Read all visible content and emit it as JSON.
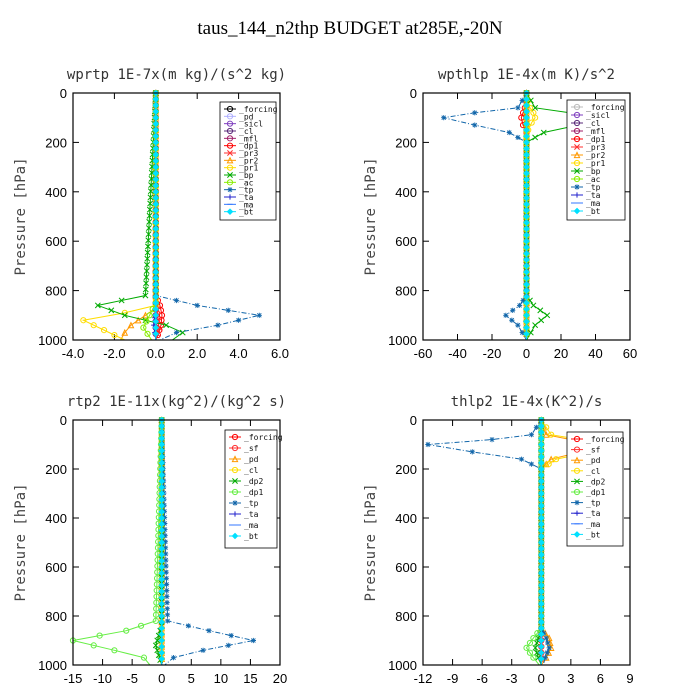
{
  "title": "taus_144_n2thp  BUDGET at285E,-20N",
  "chart_data": [
    {
      "type": "line",
      "title": "wprtp  1E-7x(m kg)/(s^2 kg)",
      "ylabel": "Pressure [hPa]",
      "xlim": [
        -4,
        6
      ],
      "ylim": [
        1000,
        0
      ],
      "xticks": [
        "-4.0",
        "-2.0",
        "0.0",
        "2.0",
        "4.0",
        "6.0"
      ],
      "xtick_values": [
        -4,
        -2,
        0,
        2,
        4,
        6
      ],
      "yticks": [
        "0",
        "200",
        "400",
        "600",
        "800",
        "1000"
      ],
      "ytick_values": [
        0,
        200,
        400,
        600,
        800,
        1000
      ],
      "legend_position": "top-right",
      "series": [
        {
          "name": "_forcing",
          "color": "#000000",
          "marker": "o",
          "x": [
            0,
            0,
            0,
            0,
            0,
            0,
            0
          ],
          "y": [
            0,
            200,
            400,
            600,
            800,
            900,
            1000
          ]
        },
        {
          "name": "_pd",
          "color": "#b0b0ff",
          "marker": "o",
          "x": [
            0,
            0,
            0
          ],
          "y": [
            0,
            500,
            1000
          ]
        },
        {
          "name": "_sicl",
          "color": "#7f3fbf",
          "marker": "o",
          "x": [
            0,
            0,
            0
          ],
          "y": [
            0,
            500,
            1000
          ]
        },
        {
          "name": "_cl",
          "color": "#5a2a7a",
          "marker": "o",
          "x": [
            0,
            0,
            0
          ],
          "y": [
            0,
            500,
            1000
          ]
        },
        {
          "name": "_mfl",
          "color": "#a0206a",
          "marker": "o",
          "x": [
            0,
            0,
            0
          ],
          "y": [
            0,
            500,
            1000
          ]
        },
        {
          "name": "_dp1",
          "color": "#ff0000",
          "marker": "o",
          "x": [
            0,
            0,
            0.2,
            0.3,
            0.25,
            0.1,
            0
          ],
          "y": [
            0,
            820,
            860,
            900,
            940,
            980,
            1000
          ]
        },
        {
          "name": "_pr3",
          "color": "#ff3030",
          "marker": "x",
          "x": [
            0,
            0,
            0.1,
            0.15,
            0
          ],
          "y": [
            0,
            850,
            900,
            950,
            1000
          ]
        },
        {
          "name": "_pr2",
          "color": "#ff9900",
          "marker": "^",
          "x": [
            0,
            0,
            -0.5,
            -1.2,
            -1.5,
            -1.7
          ],
          "y": [
            0,
            870,
            900,
            940,
            970,
            1000
          ]
        },
        {
          "name": "_pr1",
          "color": "#ffdd00",
          "marker": "o",
          "x": [
            0,
            0,
            -1.5,
            -3.5,
            -2.5,
            -1.5
          ],
          "y": [
            0,
            860,
            890,
            920,
            960,
            1000
          ]
        },
        {
          "name": "_bp",
          "color": "#00aa00",
          "marker": "x",
          "x": [
            0,
            -0.5,
            -2.8,
            -1.5,
            0.5,
            1.3,
            0.8
          ],
          "y": [
            0,
            820,
            860,
            900,
            940,
            970,
            1000
          ]
        },
        {
          "name": "_ac",
          "color": "#88ee00",
          "marker": "o",
          "x": [
            0,
            0,
            -0.3,
            -0.6,
            -0.2
          ],
          "y": [
            0,
            850,
            900,
            950,
            1000
          ]
        },
        {
          "name": "_tp",
          "color": "#1166aa",
          "marker": "*",
          "x": [
            0,
            0,
            2.0,
            5.0,
            3.0,
            1.0,
            0.2
          ],
          "y": [
            0,
            820,
            860,
            900,
            940,
            970,
            1000
          ]
        },
        {
          "name": "_ta",
          "color": "#2222cc",
          "marker": "+",
          "x": [
            0,
            0,
            -0.1,
            0
          ],
          "y": [
            0,
            880,
            940,
            1000
          ]
        },
        {
          "name": "_ma",
          "color": "#3377ff",
          "marker": "-",
          "x": [
            0,
            0,
            0
          ],
          "y": [
            0,
            500,
            1000
          ]
        },
        {
          "name": "_bt",
          "color": "#00e0ff",
          "marker": "D",
          "x": [
            0,
            0,
            0
          ],
          "y": [
            0,
            500,
            1000
          ]
        }
      ]
    },
    {
      "type": "line",
      "title": "wpthlp  1E-4x(m K)/s^2",
      "ylabel": "Pressure [hPa]",
      "xlim": [
        -60,
        60
      ],
      "ylim": [
        1000,
        0
      ],
      "xticks": [
        "-60",
        "-40",
        "-20",
        "0",
        "20",
        "40",
        "60"
      ],
      "xtick_values": [
        -60,
        -40,
        -20,
        0,
        20,
        40,
        60
      ],
      "yticks": [
        "0",
        "200",
        "400",
        "600",
        "800",
        "1000"
      ],
      "ytick_values": [
        0,
        200,
        400,
        600,
        800,
        1000
      ],
      "legend_position": "top-right",
      "series": [
        {
          "name": "_forcing",
          "color": "#bbbbbb",
          "marker": "o",
          "x": [
            0,
            0,
            0
          ],
          "y": [
            0,
            500,
            1000
          ]
        },
        {
          "name": "_sicl",
          "color": "#7f3fbf",
          "marker": "o",
          "x": [
            0,
            0,
            0
          ],
          "y": [
            0,
            500,
            1000
          ]
        },
        {
          "name": "_cl",
          "color": "#5a2a7a",
          "marker": "o",
          "x": [
            0,
            0,
            0
          ],
          "y": [
            0,
            500,
            1000
          ]
        },
        {
          "name": "_mfl",
          "color": "#a0206a",
          "marker": "o",
          "x": [
            0,
            0,
            0
          ],
          "y": [
            0,
            500,
            1000
          ]
        },
        {
          "name": "_dp1",
          "color": "#ff0000",
          "marker": "o",
          "x": [
            0,
            -1,
            -2,
            -3,
            -2,
            0,
            0
          ],
          "y": [
            0,
            60,
            80,
            100,
            130,
            160,
            1000
          ]
        },
        {
          "name": "_pr3",
          "color": "#ff3030",
          "marker": "x",
          "x": [
            0,
            0,
            0
          ],
          "y": [
            0,
            500,
            1000
          ]
        },
        {
          "name": "_pr2",
          "color": "#ff9900",
          "marker": "^",
          "x": [
            0,
            0,
            0
          ],
          "y": [
            0,
            500,
            1000
          ]
        },
        {
          "name": "_pr1",
          "color": "#ffdd00",
          "marker": "o",
          "x": [
            0,
            2,
            4,
            5,
            3,
            1,
            0,
            0
          ],
          "y": [
            0,
            60,
            80,
            100,
            120,
            150,
            180,
            1000
          ]
        },
        {
          "name": "_bp",
          "color": "#00aa00",
          "marker": "x",
          "x": [
            0,
            5,
            25,
            50,
            30,
            10,
            0,
            0,
            4,
            12,
            5,
            0
          ],
          "y": [
            0,
            60,
            80,
            100,
            130,
            160,
            200,
            820,
            860,
            900,
            940,
            1000
          ]
        },
        {
          "name": "_ac",
          "color": "#88ee00",
          "marker": "o",
          "x": [
            0,
            0,
            0
          ],
          "y": [
            0,
            500,
            1000
          ]
        },
        {
          "name": "_tp",
          "color": "#1166aa",
          "marker": "*",
          "x": [
            0,
            -5,
            -30,
            -48,
            -30,
            -10,
            0,
            0,
            -4,
            -12,
            -5,
            0
          ],
          "y": [
            0,
            60,
            80,
            100,
            130,
            160,
            200,
            820,
            860,
            900,
            940,
            1000
          ]
        },
        {
          "name": "_ta",
          "color": "#2222cc",
          "marker": "+",
          "x": [
            0,
            0,
            0
          ],
          "y": [
            0,
            500,
            1000
          ]
        },
        {
          "name": "_ma",
          "color": "#3377ff",
          "marker": "-",
          "x": [
            0,
            0,
            0
          ],
          "y": [
            0,
            500,
            1000
          ]
        },
        {
          "name": "_bt",
          "color": "#00e0ff",
          "marker": "D",
          "x": [
            0,
            0,
            0
          ],
          "y": [
            0,
            500,
            1000
          ]
        }
      ]
    },
    {
      "type": "line",
      "title": "rtp2  1E-11x(kg^2)/(kg^2 s)",
      "ylabel": "Pressure [hPa]",
      "xlim": [
        -15,
        20
      ],
      "ylim": [
        1000,
        0
      ],
      "xticks": [
        "-15",
        "-10",
        "-5",
        "0",
        "5",
        "10",
        "15",
        "20"
      ],
      "xtick_values": [
        -15,
        -10,
        -5,
        0,
        5,
        10,
        15,
        20
      ],
      "yticks": [
        "0",
        "200",
        "400",
        "600",
        "800",
        "1000"
      ],
      "ytick_values": [
        0,
        200,
        400,
        600,
        800,
        1000
      ],
      "legend_position": "top-right",
      "series": [
        {
          "name": "_forcing",
          "color": "#ff0000",
          "marker": "o",
          "x": [
            0,
            0,
            0,
            0,
            0,
            0,
            0
          ],
          "y": [
            0,
            200,
            400,
            600,
            800,
            900,
            1000
          ]
        },
        {
          "name": "_sf",
          "color": "#ff3030",
          "marker": "o",
          "x": [
            0,
            0,
            0
          ],
          "y": [
            0,
            500,
            1000
          ]
        },
        {
          "name": "_pd",
          "color": "#ff9900",
          "marker": "^",
          "x": [
            0,
            0,
            0
          ],
          "y": [
            0,
            500,
            1000
          ]
        },
        {
          "name": "_cl",
          "color": "#ffdd00",
          "marker": "o",
          "x": [
            0,
            0,
            0
          ],
          "y": [
            0,
            500,
            1000
          ]
        },
        {
          "name": "_dp2",
          "color": "#00aa00",
          "marker": "x",
          "x": [
            0,
            0,
            -0.5,
            -1,
            -0.5,
            0
          ],
          "y": [
            0,
            840,
            880,
            920,
            960,
            1000
          ]
        },
        {
          "name": "_dp1",
          "color": "#66ee44",
          "marker": "o",
          "x": [
            0,
            -1,
            -6,
            -15,
            -8,
            -3,
            -2
          ],
          "y": [
            0,
            820,
            860,
            900,
            940,
            970,
            1000
          ]
        },
        {
          "name": "_tp",
          "color": "#1166aa",
          "marker": "*",
          "x": [
            0,
            1,
            8,
            15.5,
            7,
            2,
            0.5
          ],
          "y": [
            0,
            820,
            860,
            900,
            940,
            970,
            1000
          ]
        },
        {
          "name": "_ta",
          "color": "#2222cc",
          "marker": "+",
          "x": [
            0,
            0,
            0
          ],
          "y": [
            0,
            500,
            1000
          ]
        },
        {
          "name": "_ma",
          "color": "#3377ff",
          "marker": "-",
          "x": [
            0,
            0,
            0
          ],
          "y": [
            0,
            500,
            1000
          ]
        },
        {
          "name": "_bt",
          "color": "#00e0ff",
          "marker": "D",
          "x": [
            0,
            0,
            0
          ],
          "y": [
            0,
            500,
            1000
          ]
        }
      ]
    },
    {
      "type": "line",
      "title": "thlp2  1E-4x(K^2)/s",
      "ylabel": "Pressure [hPa]",
      "xlim": [
        -12,
        9
      ],
      "ylim": [
        1000,
        0
      ],
      "xticks": [
        "-12",
        "-9",
        "-6",
        "-3",
        "0",
        "3",
        "6",
        "9"
      ],
      "xtick_values": [
        -12,
        -9,
        -6,
        -3,
        0,
        3,
        6,
        9
      ],
      "yticks": [
        "0",
        "200",
        "400",
        "600",
        "800",
        "1000"
      ],
      "ytick_values": [
        0,
        200,
        400,
        600,
        800,
        1000
      ],
      "legend_position": "top-right",
      "series": [
        {
          "name": "_forcing",
          "color": "#ff0000",
          "marker": "o",
          "x": [
            0,
            0,
            0,
            0,
            0,
            0,
            0
          ],
          "y": [
            0,
            200,
            400,
            600,
            800,
            900,
            1000
          ]
        },
        {
          "name": "_sf",
          "color": "#ff3030",
          "marker": "o",
          "x": [
            0,
            0,
            0
          ],
          "y": [
            0,
            500,
            1000
          ]
        },
        {
          "name": "_pd",
          "color": "#ff9900",
          "marker": "^",
          "x": [
            0,
            0.5,
            3,
            6,
            4,
            1,
            0,
            0,
            0.8,
            1,
            0.5,
            0
          ],
          "y": [
            0,
            60,
            80,
            100,
            130,
            160,
            200,
            850,
            890,
            930,
            970,
            1000
          ]
        },
        {
          "name": "_cl",
          "color": "#ffdd00",
          "marker": "o",
          "x": [
            0,
            1,
            4,
            7.5,
            5,
            1.5,
            0
          ],
          "y": [
            0,
            60,
            80,
            100,
            130,
            160,
            200
          ]
        },
        {
          "name": "_dp2",
          "color": "#00aa00",
          "marker": "x",
          "x": [
            0,
            0,
            -0.3,
            -0.6,
            -0.3,
            0
          ],
          "y": [
            0,
            850,
            890,
            930,
            970,
            1000
          ]
        },
        {
          "name": "_dp1",
          "color": "#66ee44",
          "marker": "o",
          "x": [
            0,
            0,
            -0.8,
            -1.5,
            -0.8,
            -0.2
          ],
          "y": [
            0,
            850,
            890,
            930,
            970,
            1000
          ]
        },
        {
          "name": "_tp",
          "color": "#1166aa",
          "marker": "*",
          "x": [
            0,
            -1,
            -5,
            -11.5,
            -7,
            -2,
            0,
            0,
            0.5,
            0.8,
            0.4,
            0.2
          ],
          "y": [
            0,
            60,
            80,
            100,
            130,
            160,
            200,
            850,
            890,
            930,
            970,
            1000
          ]
        },
        {
          "name": "_ta",
          "color": "#2222cc",
          "marker": "+",
          "x": [
            0,
            0,
            0
          ],
          "y": [
            0,
            500,
            1000
          ]
        },
        {
          "name": "_ma",
          "color": "#3377ff",
          "marker": "-",
          "x": [
            0,
            0,
            0
          ],
          "y": [
            0,
            500,
            1000
          ]
        },
        {
          "name": "_bt",
          "color": "#00e0ff",
          "marker": "D",
          "x": [
            0,
            0,
            0
          ],
          "y": [
            0,
            500,
            1000
          ]
        }
      ]
    }
  ]
}
